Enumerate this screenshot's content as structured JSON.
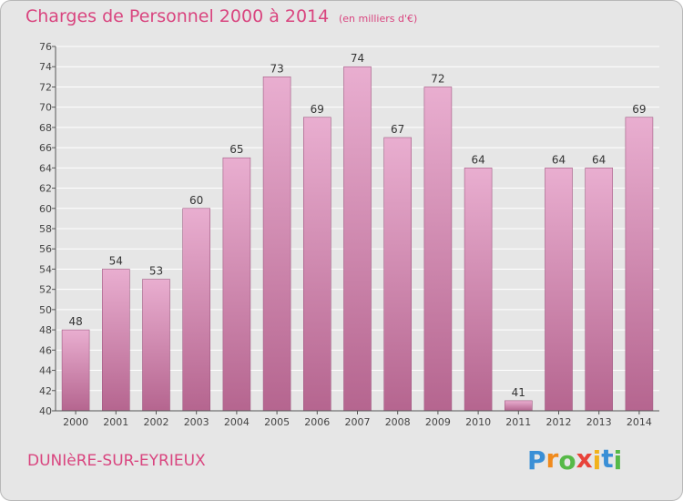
{
  "title": "Charges de Personnel 2000 à 2014",
  "subtitle": "(en milliers d'€)",
  "city": "DUNIèRE-SUR-EYRIEUX",
  "logo": {
    "letters": [
      "P",
      "r",
      "o",
      "x",
      "i",
      "t",
      "i"
    ],
    "colors": [
      "#3a8fd6",
      "#f08a1c",
      "#56b947",
      "#e8433a",
      "#f2b21b",
      "#3a8fd6",
      "#56b947"
    ]
  },
  "colors": {
    "bar_top": "#e9aed0",
    "bar_bottom": "#b5658f",
    "bar_edge": "#a05a82",
    "text_accent": "#d9457f"
  },
  "chart_data": {
    "type": "bar",
    "categories": [
      "2000",
      "2001",
      "2002",
      "2003",
      "2004",
      "2005",
      "2006",
      "2007",
      "2008",
      "2009",
      "2010",
      "2011",
      "2012",
      "2013",
      "2014"
    ],
    "values": [
      48,
      54,
      53,
      60,
      65,
      73,
      69,
      74,
      67,
      72,
      64,
      41,
      64,
      64,
      69
    ],
    "title": "Charges de Personnel 2000 à 2014",
    "xlabel": "",
    "ylabel": "",
    "ylim": [
      40,
      76
    ],
    "yticks": [
      40,
      42,
      44,
      46,
      48,
      50,
      52,
      54,
      56,
      58,
      60,
      62,
      64,
      66,
      68,
      70,
      72,
      74,
      76
    ],
    "grid": true,
    "legend": "none"
  }
}
